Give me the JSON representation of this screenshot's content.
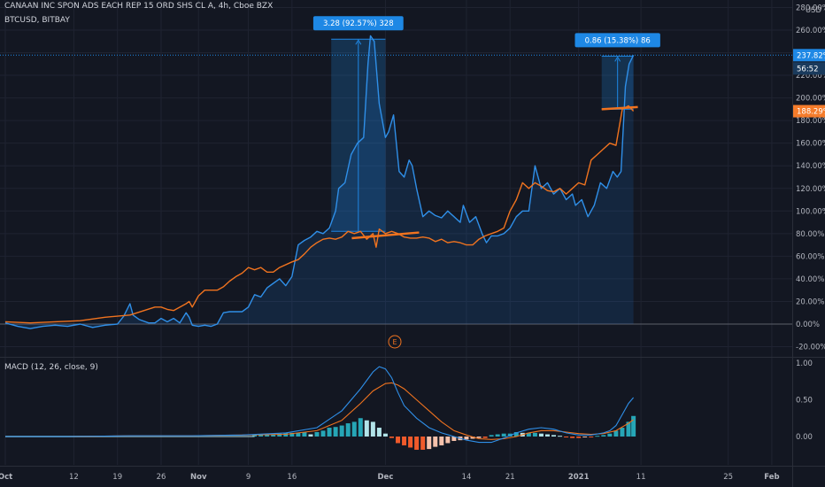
{
  "legend": {
    "symbol_line": "CANAAN INC SPON ADS EACH REP 15 ORD SHS CL A, 4h, Cboe BZX",
    "compare_line": "BTCUSD, BITBAY",
    "macd_line": "MACD (12, 26, close, 9)"
  },
  "price_axis": {
    "currency": "USD",
    "ticks": [
      "280.00%",
      "260.00%",
      "240.00%",
      "220.00%",
      "200.00%",
      "180.00%",
      "160.00%",
      "140.00%",
      "120.00%",
      "100.00%",
      "80.00%",
      "60.00%",
      "40.00%",
      "20.00%",
      "0.00%",
      "-20.00%"
    ],
    "tick_values": [
      280,
      260,
      240,
      220,
      200,
      180,
      160,
      140,
      120,
      100,
      80,
      60,
      40,
      20,
      0,
      -20
    ],
    "last_blue_label": "237.82%",
    "countdown_label": "56:52",
    "last_orange_label": "188.29%"
  },
  "macd_axis": {
    "ticks": [
      "1.00",
      "0.50",
      "0.00"
    ],
    "tick_values": [
      1.0,
      0.5,
      0.0
    ]
  },
  "time_axis": {
    "labels": [
      "Oct",
      "12",
      "19",
      "26",
      "Nov",
      "9",
      "16",
      "Dec",
      "14",
      "21",
      "2021",
      "11",
      "25",
      "Feb"
    ],
    "label_days": [
      0,
      11,
      18,
      25,
      31,
      39,
      46,
      61,
      74,
      81,
      92,
      102,
      116,
      123
    ],
    "bold_labels": [
      "Oct",
      "Nov",
      "Dec",
      "2021",
      "Feb"
    ]
  },
  "measurements": [
    {
      "label": "3.28 (92.57%) 328",
      "x_from": 52.3,
      "x_to": 61.0,
      "y_from": 82,
      "y_to": 252
    },
    {
      "label": "0.86 (15.38%) 86",
      "x_from": 95.7,
      "x_to": 100.8,
      "y_from": 190,
      "y_to": 237
    }
  ],
  "earnings_marker": "E",
  "colors": {
    "background": "#131722",
    "blue": "#2f8fe8",
    "orange": "#f0731f",
    "histogram_up_strong": "#26a6b6",
    "histogram_up_weak": "#b2e3e8",
    "histogram_down_strong": "#ef5a2b",
    "histogram_down_weak": "#f5c1ab",
    "tag_blue": "#1e88e5",
    "tag_orange": "#f57c2b"
  },
  "chart_data": {
    "type": "line",
    "x_unit": "days since Oct 1, 2020",
    "x_range": [
      0,
      126
    ],
    "ylim": [
      -25,
      282
    ],
    "series": [
      {
        "name": "CANAAN INC SPON ADS EACH REP 15 ORD SHS CL A",
        "color": "#2f8fe8",
        "points": [
          [
            0,
            1
          ],
          [
            2,
            -2
          ],
          [
            4,
            -4
          ],
          [
            6,
            -2
          ],
          [
            8,
            -1
          ],
          [
            10,
            -2
          ],
          [
            12,
            0
          ],
          [
            14,
            -3
          ],
          [
            16,
            -1
          ],
          [
            18,
            0
          ],
          [
            19,
            7
          ],
          [
            20,
            18
          ],
          [
            20.5,
            8
          ],
          [
            21.5,
            4
          ],
          [
            23,
            1
          ],
          [
            24,
            1
          ],
          [
            25,
            5
          ],
          [
            26,
            2
          ],
          [
            27,
            5
          ],
          [
            28,
            1
          ],
          [
            29,
            10
          ],
          [
            29.5,
            6
          ],
          [
            30,
            -1
          ],
          [
            31,
            -2
          ],
          [
            32,
            -1
          ],
          [
            33,
            -2
          ],
          [
            34,
            0
          ],
          [
            35,
            10
          ],
          [
            36,
            11
          ],
          [
            37,
            11
          ],
          [
            38,
            11
          ],
          [
            39,
            15
          ],
          [
            40,
            26
          ],
          [
            41,
            24
          ],
          [
            42,
            32
          ],
          [
            43,
            36
          ],
          [
            44,
            40
          ],
          [
            45,
            34
          ],
          [
            46,
            42
          ],
          [
            47,
            70
          ],
          [
            48,
            74
          ],
          [
            49,
            77
          ],
          [
            50,
            82
          ],
          [
            51,
            80
          ],
          [
            52,
            85
          ],
          [
            53,
            100
          ],
          [
            53.5,
            120
          ],
          [
            54.5,
            125
          ],
          [
            55.5,
            150
          ],
          [
            56.5,
            160
          ],
          [
            57.5,
            165
          ],
          [
            58.2,
            230
          ],
          [
            58.6,
            255
          ],
          [
            59.2,
            250
          ],
          [
            60,
            195
          ],
          [
            61,
            165
          ],
          [
            61.5,
            170
          ],
          [
            62.3,
            185
          ],
          [
            63.2,
            135
          ],
          [
            64,
            130
          ],
          [
            64.8,
            145
          ],
          [
            65.3,
            140
          ],
          [
            66,
            120
          ],
          [
            67,
            95
          ],
          [
            68,
            100
          ],
          [
            69,
            96
          ],
          [
            70,
            94
          ],
          [
            71,
            100
          ],
          [
            72,
            95
          ],
          [
            73,
            90
          ],
          [
            73.5,
            105
          ],
          [
            74.5,
            90
          ],
          [
            75.5,
            95
          ],
          [
            76.5,
            80
          ],
          [
            77.2,
            72
          ],
          [
            78,
            78
          ],
          [
            79,
            78
          ],
          [
            80,
            80
          ],
          [
            81,
            85
          ],
          [
            82,
            95
          ],
          [
            83,
            100
          ],
          [
            84,
            100
          ],
          [
            85,
            140
          ],
          [
            86,
            120
          ],
          [
            87,
            125
          ],
          [
            88,
            115
          ],
          [
            89,
            120
          ],
          [
            90,
            110
          ],
          [
            91,
            115
          ],
          [
            91.5,
            105
          ],
          [
            92.5,
            110
          ],
          [
            93.5,
            95
          ],
          [
            94.5,
            105
          ],
          [
            95.5,
            125
          ],
          [
            96.5,
            120
          ],
          [
            97.5,
            135
          ],
          [
            98.2,
            130
          ],
          [
            98.8,
            135
          ],
          [
            99.5,
            210
          ],
          [
            100.1,
            230
          ],
          [
            100.8,
            237.8
          ]
        ]
      },
      {
        "name": "BTCUSD, BITBAY",
        "color": "#f0731f",
        "points": [
          [
            0,
            2
          ],
          [
            4,
            1
          ],
          [
            8,
            2
          ],
          [
            12,
            3
          ],
          [
            16,
            6
          ],
          [
            20,
            8
          ],
          [
            24,
            15
          ],
          [
            25,
            15
          ],
          [
            26,
            13
          ],
          [
            27,
            12
          ],
          [
            29,
            18
          ],
          [
            29.5,
            20
          ],
          [
            30,
            15
          ],
          [
            31,
            25
          ],
          [
            32,
            30
          ],
          [
            33,
            30
          ],
          [
            34,
            30
          ],
          [
            35,
            33
          ],
          [
            36,
            38
          ],
          [
            37,
            42
          ],
          [
            38,
            45
          ],
          [
            39,
            50
          ],
          [
            40,
            48
          ],
          [
            41,
            50
          ],
          [
            42,
            46
          ],
          [
            43,
            46
          ],
          [
            44,
            50
          ],
          [
            46,
            55
          ],
          [
            47,
            57
          ],
          [
            48,
            62
          ],
          [
            49,
            68
          ],
          [
            50,
            72
          ],
          [
            51,
            75
          ],
          [
            52,
            76
          ],
          [
            53,
            75
          ],
          [
            54,
            77
          ],
          [
            55,
            82
          ],
          [
            56,
            80
          ],
          [
            57,
            82
          ],
          [
            58,
            75
          ],
          [
            59,
            80
          ],
          [
            59.5,
            68
          ],
          [
            60,
            84
          ],
          [
            61,
            80
          ],
          [
            62,
            82
          ],
          [
            63,
            80
          ],
          [
            64,
            77
          ],
          [
            65,
            76
          ],
          [
            66,
            76
          ],
          [
            67,
            77
          ],
          [
            68,
            76
          ],
          [
            69,
            73
          ],
          [
            70,
            75
          ],
          [
            71,
            72
          ],
          [
            72,
            73
          ],
          [
            73,
            72
          ],
          [
            74,
            70
          ],
          [
            75,
            70
          ],
          [
            76,
            75
          ],
          [
            77,
            78
          ],
          [
            78,
            80
          ],
          [
            79,
            82
          ],
          [
            80,
            85
          ],
          [
            81,
            100
          ],
          [
            82,
            110
          ],
          [
            83,
            125
          ],
          [
            84,
            120
          ],
          [
            85,
            125
          ],
          [
            86,
            122
          ],
          [
            87,
            118
          ],
          [
            88,
            117
          ],
          [
            89,
            120
          ],
          [
            90,
            115
          ],
          [
            91,
            120
          ],
          [
            92,
            125
          ],
          [
            93,
            123
          ],
          [
            94,
            145
          ],
          [
            95,
            150
          ],
          [
            96,
            155
          ],
          [
            97,
            160
          ],
          [
            98,
            158
          ],
          [
            99,
            190
          ],
          [
            100,
            193
          ],
          [
            100.8,
            188.3
          ]
        ]
      }
    ],
    "macd": {
      "ylim": [
        -0.25,
        1.05
      ],
      "macd_points": [
        [
          0,
          0
        ],
        [
          10,
          0
        ],
        [
          20,
          0.01
        ],
        [
          30,
          0.01
        ],
        [
          38,
          0.02
        ],
        [
          45,
          0.05
        ],
        [
          50,
          0.12
        ],
        [
          54,
          0.35
        ],
        [
          57,
          0.65
        ],
        [
          59,
          0.88
        ],
        [
          60,
          0.95
        ],
        [
          61,
          0.92
        ],
        [
          62,
          0.8
        ],
        [
          63,
          0.6
        ],
        [
          64,
          0.42
        ],
        [
          66,
          0.25
        ],
        [
          68,
          0.12
        ],
        [
          70,
          0.05
        ],
        [
          72,
          0.0
        ],
        [
          74,
          -0.05
        ],
        [
          76,
          -0.08
        ],
        [
          78,
          -0.08
        ],
        [
          80,
          -0.02
        ],
        [
          82,
          0.05
        ],
        [
          84,
          0.1
        ],
        [
          86,
          0.12
        ],
        [
          88,
          0.1
        ],
        [
          90,
          0.05
        ],
        [
          92,
          0.02
        ],
        [
          94,
          0.02
        ],
        [
          96,
          0.05
        ],
        [
          97,
          0.08
        ],
        [
          98,
          0.15
        ],
        [
          99,
          0.3
        ],
        [
          100,
          0.45
        ],
        [
          100.8,
          0.53
        ]
      ],
      "signal_points": [
        [
          0,
          0
        ],
        [
          10,
          0
        ],
        [
          20,
          0.01
        ],
        [
          30,
          0.01
        ],
        [
          38,
          0.02
        ],
        [
          45,
          0.03
        ],
        [
          50,
          0.08
        ],
        [
          54,
          0.22
        ],
        [
          57,
          0.45
        ],
        [
          59,
          0.62
        ],
        [
          61,
          0.72
        ],
        [
          62,
          0.73
        ],
        [
          63,
          0.7
        ],
        [
          64,
          0.65
        ],
        [
          66,
          0.5
        ],
        [
          68,
          0.35
        ],
        [
          70,
          0.2
        ],
        [
          72,
          0.08
        ],
        [
          74,
          0.02
        ],
        [
          76,
          -0.03
        ],
        [
          78,
          -0.04
        ],
        [
          80,
          -0.03
        ],
        [
          82,
          0.0
        ],
        [
          84,
          0.05
        ],
        [
          86,
          0.08
        ],
        [
          88,
          0.08
        ],
        [
          90,
          0.06
        ],
        [
          92,
          0.04
        ],
        [
          94,
          0.03
        ],
        [
          96,
          0.04
        ],
        [
          98,
          0.08
        ],
        [
          100,
          0.18
        ],
        [
          100.8,
          0.23
        ]
      ],
      "histogram": [
        [
          40,
          0.02
        ],
        [
          41,
          0.03
        ],
        [
          42,
          0.03
        ],
        [
          43,
          0.03
        ],
        [
          44,
          0.04
        ],
        [
          45,
          0.05
        ],
        [
          46,
          0.05
        ],
        [
          47,
          0.05
        ],
        [
          48,
          0.06
        ],
        [
          49,
          0.03
        ],
        [
          50,
          0.06
        ],
        [
          51,
          0.08
        ],
        [
          52,
          0.12
        ],
        [
          53,
          0.13
        ],
        [
          54,
          0.15
        ],
        [
          55,
          0.18
        ],
        [
          56,
          0.2
        ],
        [
          57,
          0.25
        ],
        [
          58,
          0.22
        ],
        [
          59,
          0.2
        ],
        [
          60,
          0.12
        ],
        [
          61,
          0.04
        ],
        [
          62,
          -0.02
        ],
        [
          63,
          -0.09
        ],
        [
          64,
          -0.12
        ],
        [
          65,
          -0.15
        ],
        [
          66,
          -0.18
        ],
        [
          67,
          -0.18
        ],
        [
          68,
          -0.17
        ],
        [
          69,
          -0.14
        ],
        [
          70,
          -0.12
        ],
        [
          71,
          -0.09
        ],
        [
          72,
          -0.06
        ],
        [
          73,
          -0.05
        ],
        [
          74,
          -0.04
        ],
        [
          75,
          -0.03
        ],
        [
          76,
          -0.02
        ],
        [
          77,
          -0.02
        ],
        [
          78,
          0.02
        ],
        [
          79,
          0.03
        ],
        [
          80,
          0.04
        ],
        [
          81,
          0.04
        ],
        [
          82,
          0.06
        ],
        [
          83,
          0.05
        ],
        [
          84,
          0.05
        ],
        [
          85,
          0.05
        ],
        [
          86,
          0.04
        ],
        [
          87,
          0.03
        ],
        [
          88,
          0.02
        ],
        [
          89,
          0.01
        ],
        [
          90,
          -0.01
        ],
        [
          91,
          -0.02
        ],
        [
          92,
          -0.02
        ],
        [
          93,
          -0.01
        ],
        [
          94,
          -0.01
        ],
        [
          95,
          0.01
        ],
        [
          96,
          0.02
        ],
        [
          97,
          0.04
        ],
        [
          98,
          0.08
        ],
        [
          99,
          0.12
        ],
        [
          100,
          0.2
        ],
        [
          100.8,
          0.28
        ]
      ]
    }
  }
}
